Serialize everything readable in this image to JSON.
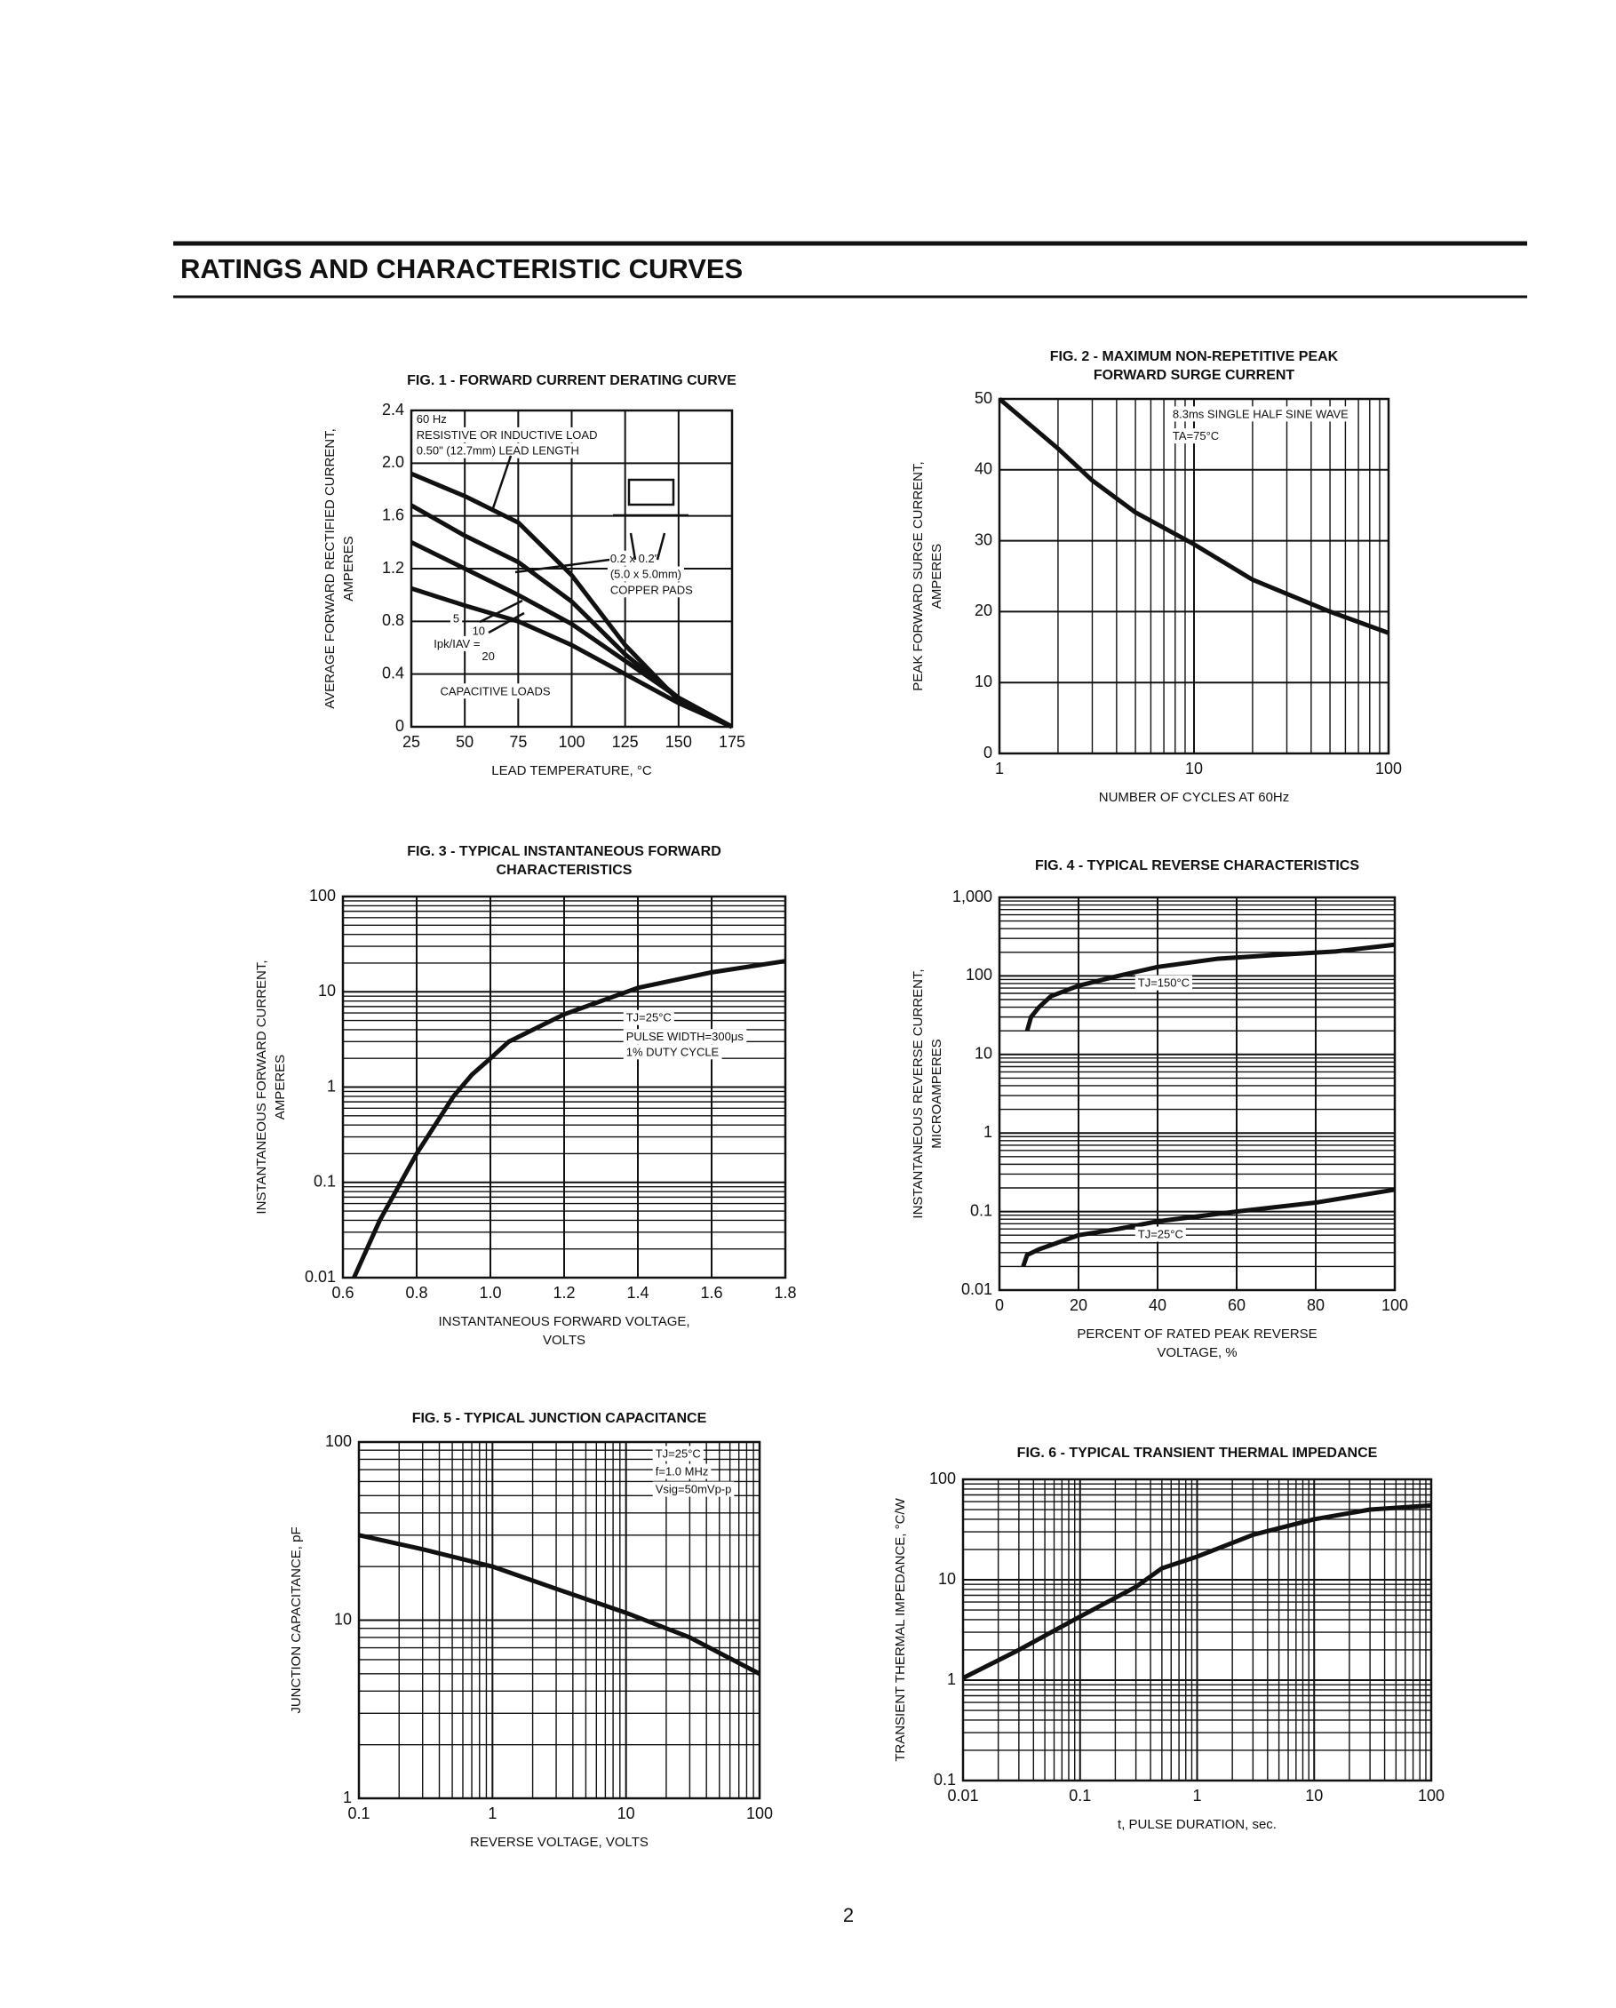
{
  "header": {
    "title": "RATINGS AND CHARACTERISTIC CURVES"
  },
  "page_number": "2",
  "chart_data": [
    {
      "type": "line",
      "title": [
        "FIG. 1 - FORWARD CURRENT DERATING CURVE"
      ],
      "x_label": [
        "LEAD TEMPERATURE, °C"
      ],
      "y_label": [
        "AVERAGE FORWARD RECTIFIED CURRENT,",
        "AMPERES"
      ],
      "xscale": "linear",
      "yscale": "linear",
      "xlim": [
        25,
        175
      ],
      "ylim": [
        0,
        2.4
      ],
      "xticks": [
        25,
        50,
        75,
        100,
        125,
        150,
        175
      ],
      "yticks": [
        0,
        0.4,
        0.8,
        1.2,
        1.6,
        {
          "value": 2,
          "label": "2.0"
        },
        2.4
      ],
      "grid": true,
      "minor_grid": false,
      "series": [
        {
          "color": "#111",
          "x": [
            25,
            50,
            75,
            100,
            125,
            150,
            175
          ],
          "values": [
            1.92,
            1.75,
            1.55,
            1.15,
            0.62,
            0.2,
            0
          ]
        },
        {
          "color": "#111",
          "x": [
            25,
            50,
            75,
            100,
            125,
            150,
            175
          ],
          "values": [
            1.68,
            1.45,
            1.25,
            0.95,
            0.55,
            0.22,
            0
          ]
        },
        {
          "color": "#111",
          "x": [
            25,
            50,
            75,
            100,
            125,
            150,
            175
          ],
          "values": [
            1.4,
            1.2,
            1.0,
            0.78,
            0.5,
            0.22,
            0
          ]
        },
        {
          "color": "#111",
          "x": [
            25,
            50,
            75,
            100,
            125,
            150,
            175
          ],
          "values": [
            1.05,
            0.92,
            0.8,
            0.62,
            0.4,
            0.18,
            0
          ]
        }
      ],
      "annotations": [
        "60 Hz",
        "RESISTIVE OR INDUCTIVE LOAD",
        "0.50\" (12.7mm) LEAD LENGTH",
        "0.2 x 0.2\"",
        "(5.0 x 5.0mm)",
        "COPPER PADS",
        "5",
        "10",
        "Ipk/IAV =",
        "20",
        "CAPACITIVE LOADS"
      ]
    },
    {
      "type": "line",
      "title": [
        "FIG. 2 - MAXIMUM NON-REPETITIVE PEAK",
        "FORWARD SURGE CURRENT"
      ],
      "x_label": [
        "NUMBER OF CYCLES AT 60Hz"
      ],
      "y_label": [
        "PEAK FORWARD SURGE  CURRENT,",
        "AMPERES"
      ],
      "xscale": "log",
      "yscale": "linear",
      "xlim": [
        1,
        100
      ],
      "ylim": [
        0,
        50
      ],
      "xticks": [
        1,
        10,
        100
      ],
      "yticks": [
        0,
        10,
        20,
        30,
        40,
        50
      ],
      "grid": true,
      "minor_grid": true,
      "series": [
        {
          "color": "#111",
          "x": [
            1,
            2,
            3,
            5,
            10,
            20,
            50,
            100
          ],
          "values": [
            50,
            43,
            38.5,
            34,
            29.5,
            24.5,
            20,
            17
          ]
        }
      ],
      "annotations": [
        "8.3ms SINGLE HALF SINE WAVE",
        "TA=75°C"
      ]
    },
    {
      "type": "line",
      "title": [
        "FIG. 3 - TYPICAL INSTANTANEOUS FORWARD",
        "CHARACTERISTICS"
      ],
      "x_label": [
        "INSTANTANEOUS FORWARD VOLTAGE,",
        "VOLTS"
      ],
      "y_label": [
        "INSTANTANEOUS FORWARD CURRENT,",
        "AMPERES"
      ],
      "xscale": "linear",
      "yscale": "log",
      "xlim": [
        0.6,
        1.8
      ],
      "ylim": [
        0.01,
        100
      ],
      "xticks": [
        0.6,
        0.8,
        {
          "value": 1,
          "label": "1.0"
        },
        1.2,
        1.4,
        1.6,
        1.8
      ],
      "yticks": [
        0.01,
        0.1,
        1,
        10,
        100
      ],
      "grid": true,
      "minor_grid": true,
      "series": [
        {
          "color": "#111",
          "x": [
            0.63,
            0.7,
            0.8,
            0.9,
            0.95,
            1.0,
            1.05,
            1.2,
            1.4,
            1.6,
            1.8
          ],
          "values": [
            0.01,
            0.04,
            0.2,
            0.8,
            1.35,
            2,
            3,
            5.8,
            11,
            16,
            21
          ]
        }
      ],
      "annotations": [
        "TJ=25°C",
        "PULSE WIDTH=300μs",
        "1% DUTY CYCLE"
      ]
    },
    {
      "type": "line",
      "title": [
        "FIG. 4 - TYPICAL REVERSE CHARACTERISTICS"
      ],
      "x_label": [
        "PERCENT OF RATED PEAK REVERSE",
        "VOLTAGE, %"
      ],
      "y_label": [
        "INSTANTANEOUS REVERSE  CURRENT,",
        "MICROAMPERES"
      ],
      "xscale": "linear",
      "yscale": "log",
      "xlim": [
        0,
        100
      ],
      "ylim": [
        0.01,
        1000
      ],
      "xticks": [
        0,
        20,
        40,
        60,
        80,
        100
      ],
      "yticks": [
        0.01,
        0.1,
        1,
        10,
        100,
        {
          "value": 1000,
          "label": "1,000"
        }
      ],
      "grid": true,
      "minor_grid": true,
      "series": [
        {
          "name": "TJ=150°C",
          "color": "#111",
          "x": [
            7,
            8,
            10,
            13,
            20,
            30,
            40,
            55,
            70,
            85,
            100
          ],
          "values": [
            20,
            30,
            40,
            55,
            75,
            100,
            130,
            165,
            185,
            205,
            250
          ]
        },
        {
          "name": "TJ=25°C",
          "color": "#111",
          "x": [
            6,
            7,
            10,
            20,
            30,
            40,
            60,
            80,
            100
          ],
          "values": [
            0.02,
            0.028,
            0.033,
            0.05,
            0.06,
            0.075,
            0.1,
            0.13,
            0.19
          ]
        }
      ],
      "annotations": []
    },
    {
      "type": "line",
      "title": [
        "FIG. 5 - TYPICAL JUNCTION CAPACITANCE"
      ],
      "x_label": [
        "REVERSE VOLTAGE, VOLTS"
      ],
      "y_label": [
        "JUNCTION CAPACITANCE, pF"
      ],
      "xscale": "log",
      "yscale": "log",
      "xlim": [
        0.1,
        100
      ],
      "ylim": [
        1,
        100
      ],
      "xticks": [
        0.1,
        1,
        10,
        100
      ],
      "yticks": [
        1,
        10,
        100
      ],
      "grid": true,
      "minor_grid": true,
      "series": [
        {
          "color": "#111",
          "x": [
            0.1,
            0.3,
            1,
            3,
            10,
            30,
            100
          ],
          "values": [
            30,
            25,
            20,
            15,
            11,
            8,
            5
          ]
        }
      ],
      "annotations": [
        "TJ=25°C",
        "f=1.0 MHz",
        "Vsig=50mVp-p"
      ]
    },
    {
      "type": "line",
      "title": [
        "FIG. 6 - TYPICAL TRANSIENT THERMAL IMPEDANCE"
      ],
      "x_label": [
        "t, PULSE DURATION, sec."
      ],
      "y_label": [
        "TRANSIENT THERMAL IMPEDANCE, °C/W"
      ],
      "xscale": "log",
      "yscale": "log",
      "xlim": [
        0.01,
        100
      ],
      "ylim": [
        0.1,
        100
      ],
      "xticks": [
        0.01,
        0.1,
        1,
        10,
        100
      ],
      "yticks": [
        0.1,
        1,
        10,
        100
      ],
      "grid": true,
      "minor_grid": true,
      "series": [
        {
          "color": "#111",
          "x": [
            0.01,
            0.03,
            0.1,
            0.3,
            0.5,
            1,
            3,
            10,
            30,
            100
          ],
          "values": [
            1.05,
            2,
            4.3,
            8.5,
            13,
            17,
            28,
            40,
            50,
            55
          ]
        }
      ],
      "annotations": []
    }
  ]
}
